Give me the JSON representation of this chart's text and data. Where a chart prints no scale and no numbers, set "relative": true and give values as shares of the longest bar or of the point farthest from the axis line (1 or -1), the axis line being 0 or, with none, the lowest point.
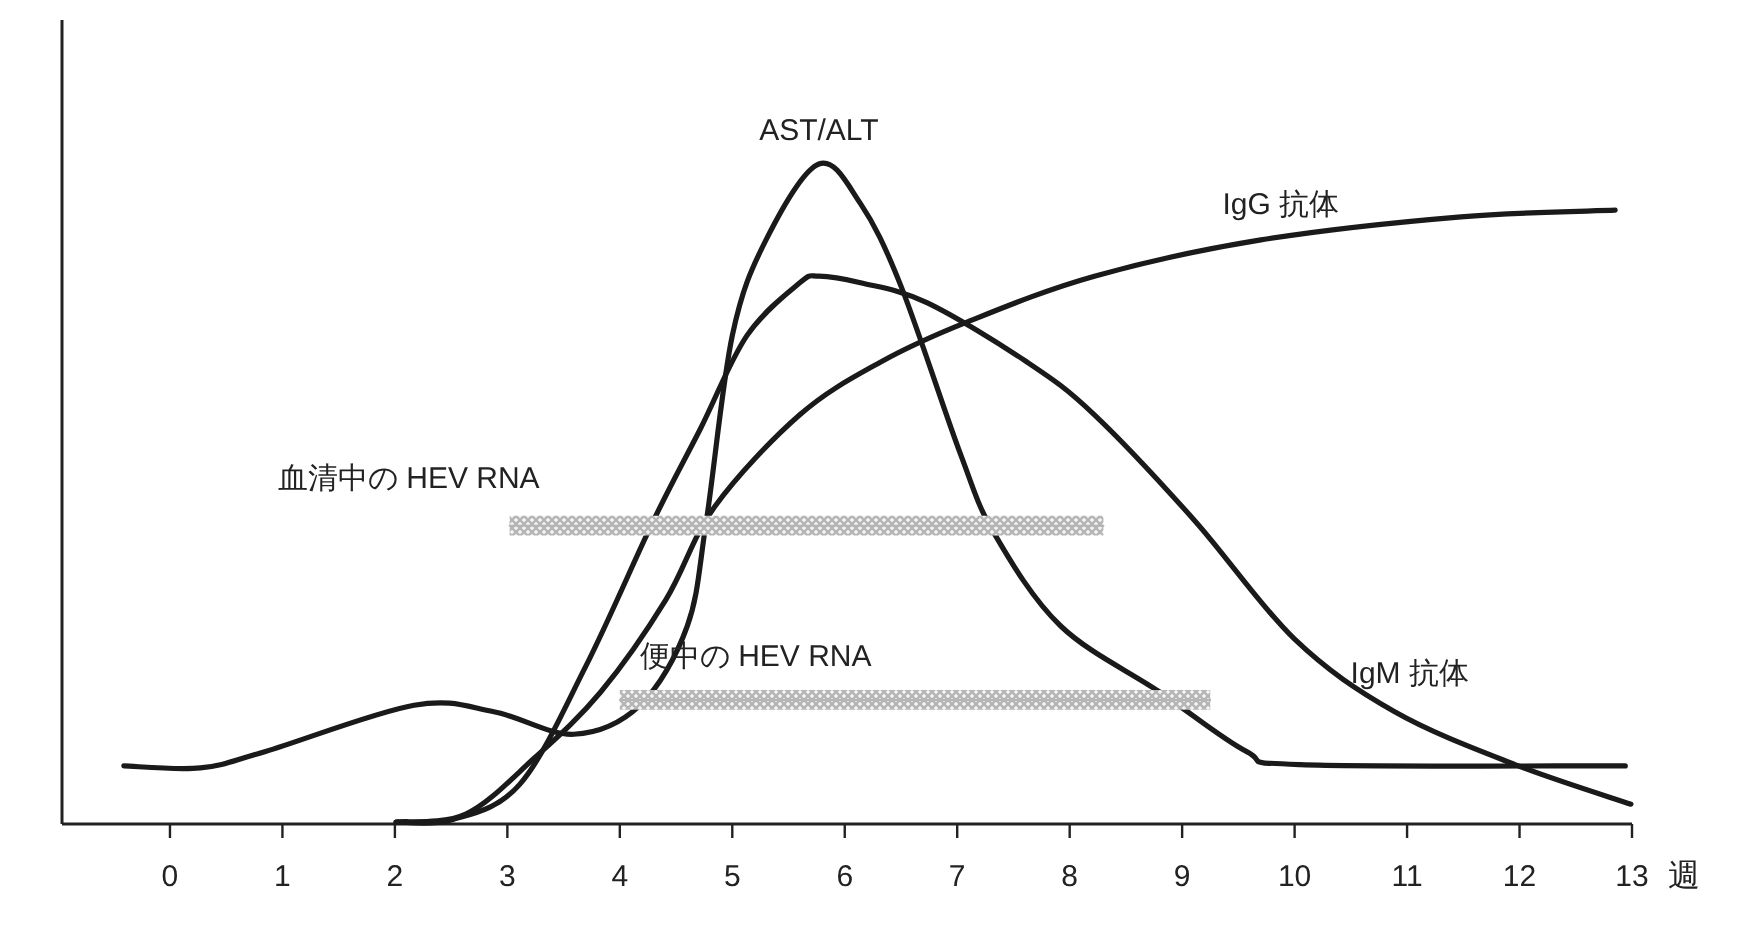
{
  "chart_data": {
    "type": "line",
    "relative": true,
    "xlabel": "週",
    "xlim": [
      -0.96,
      13
    ],
    "xticks": [
      0,
      1,
      2,
      3,
      4,
      5,
      6,
      7,
      8,
      9,
      10,
      11,
      12,
      13
    ],
    "grid": false,
    "legend": false,
    "marker": "none",
    "line_style": "solid",
    "series": [
      {
        "name": "AST/ALT",
        "color": "#1a1a1a",
        "x": [
          -0.41,
          0.27,
          0.85,
          2.17,
          2.88,
          3.59,
          4.18,
          4.6,
          4.77,
          5.0,
          5.3,
          5.77,
          6.14,
          6.5,
          7.03,
          7.33,
          7.92,
          8.8,
          9.57,
          10.05,
          12.94
        ],
        "values": [
          0.088,
          0.085,
          0.11,
          0.18,
          0.17,
          0.136,
          0.18,
          0.3,
          0.46,
          0.74,
          0.885,
          1.0,
          0.94,
          0.815,
          0.56,
          0.44,
          0.3,
          0.2,
          0.11,
          0.09,
          0.088
        ]
      },
      {
        "name": "IgM 抗体",
        "color": "#1a1a1a",
        "x": [
          2.01,
          2.5,
          3.11,
          3.7,
          4.3,
          4.72,
          5.13,
          5.6,
          5.77,
          6.14,
          6.73,
          7.62,
          8.22,
          9.11,
          10.0,
          10.89,
          11.96,
          12.99
        ],
        "values": [
          0.003,
          0.006,
          0.06,
          0.24,
          0.46,
          0.6,
          0.74,
          0.82,
          0.83,
          0.82,
          0.79,
          0.7,
          0.62,
          0.46,
          0.28,
          0.17,
          0.09,
          0.03
        ]
      },
      {
        "name": "IgG 抗体",
        "color": "#1a1a1a",
        "x": [
          2.01,
          2.63,
          3.24,
          3.83,
          4.41,
          4.84,
          5.6,
          6.32,
          7.08,
          8.22,
          9.7,
          11.48,
          12.85
        ],
        "values": [
          0.003,
          0.015,
          0.1,
          0.2,
          0.34,
          0.48,
          0.62,
          0.7,
          0.76,
          0.83,
          0.885,
          0.92,
          0.93
        ]
      },
      {
        "name": "血清中の HEV RNA",
        "color": "#b5b5b5",
        "x": [
          3.02,
          8.3
        ],
        "values": [
          0.452,
          0.452
        ],
        "lower": [
          0.437,
          0.437
        ],
        "upper": [
          0.467,
          0.467
        ]
      },
      {
        "name": "便中の HEV RNA",
        "color": "#b5b5b5",
        "x": [
          4.0,
          9.25
        ],
        "values": [
          0.188,
          0.188
        ],
        "lower": [
          0.173,
          0.173
        ],
        "upper": [
          0.203,
          0.203
        ]
      }
    ]
  }
}
